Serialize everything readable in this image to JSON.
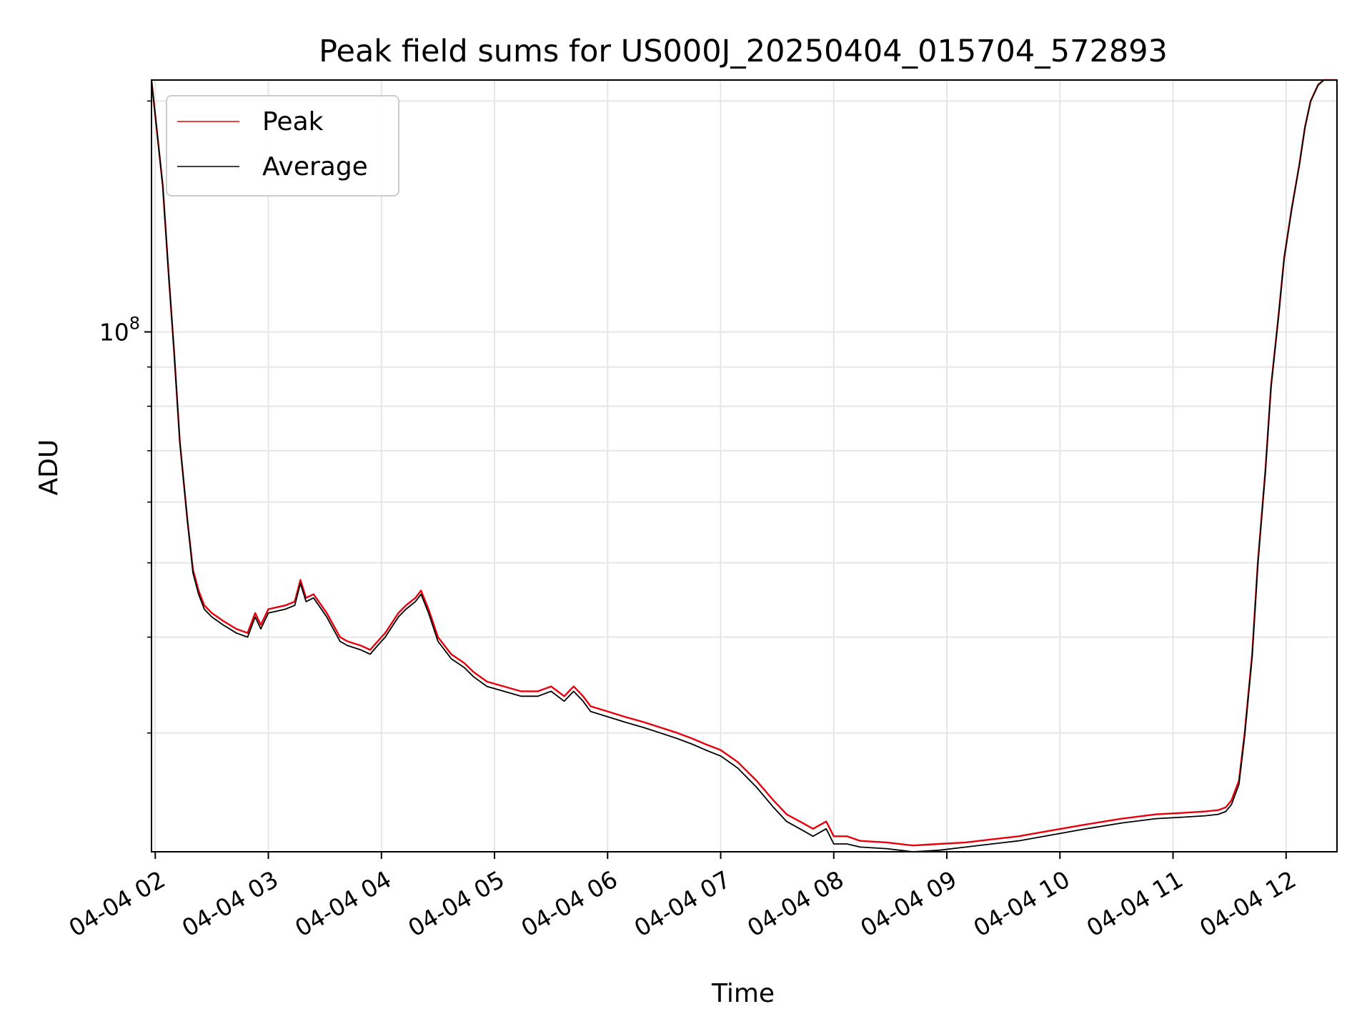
{
  "chart_data": {
    "type": "line",
    "title": "Peak field sums for US000J_20250404_015704_572893",
    "xlabel": "Time",
    "ylabel": "ADU",
    "x_scale": "time",
    "y_scale": "log",
    "xlim": [
      "2025-04-04 01:58",
      "2025-04-04 12:27"
    ],
    "ylim": [
      21000000,
      213000000
    ],
    "x_ticks": [
      {
        "value": "2025-04-04 02:00",
        "label": "04-04 02"
      },
      {
        "value": "2025-04-04 03:00",
        "label": "04-04 03"
      },
      {
        "value": "2025-04-04 04:00",
        "label": "04-04 04"
      },
      {
        "value": "2025-04-04 05:00",
        "label": "04-04 05"
      },
      {
        "value": "2025-04-04 06:00",
        "label": "04-04 06"
      },
      {
        "value": "2025-04-04 07:00",
        "label": "04-04 07"
      },
      {
        "value": "2025-04-04 08:00",
        "label": "04-04 08"
      },
      {
        "value": "2025-04-04 09:00",
        "label": "04-04 09"
      },
      {
        "value": "2025-04-04 10:00",
        "label": "04-04 10"
      },
      {
        "value": "2025-04-04 11:00",
        "label": "04-04 11"
      },
      {
        "value": "2025-04-04 12:00",
        "label": "04-04 12"
      }
    ],
    "y_major_tick": {
      "value": 100000000,
      "base": "10",
      "exponent": "8"
    },
    "y_minor_ticks": [
      30000000,
      40000000,
      50000000,
      60000000,
      70000000,
      80000000,
      90000000,
      200000000
    ],
    "grid": true,
    "legend_position": "upper-left",
    "x": [
      "2025-04-04 01:58",
      "2025-04-04 02:04",
      "2025-04-04 02:07",
      "2025-04-04 02:10",
      "2025-04-04 02:13",
      "2025-04-04 02:17",
      "2025-04-04 02:20",
      "2025-04-04 02:23",
      "2025-04-04 02:26",
      "2025-04-04 02:30",
      "2025-04-04 02:36",
      "2025-04-04 02:43",
      "2025-04-04 02:49",
      "2025-04-04 02:53",
      "2025-04-04 02:56",
      "2025-04-04 03:00",
      "2025-04-04 03:09",
      "2025-04-04 03:14",
      "2025-04-04 03:17",
      "2025-04-04 03:20",
      "2025-04-04 03:24",
      "2025-04-04 03:31",
      "2025-04-04 03:38",
      "2025-04-04 03:42",
      "2025-04-04 03:49",
      "2025-04-04 03:54",
      "2025-04-04 03:58",
      "2025-04-04 04:02",
      "2025-04-04 04:09",
      "2025-04-04 04:13",
      "2025-04-04 04:18",
      "2025-04-04 04:21",
      "2025-04-04 04:25",
      "2025-04-04 04:30",
      "2025-04-04 04:37",
      "2025-04-04 04:44",
      "2025-04-04 04:49",
      "2025-04-04 04:56",
      "2025-04-04 05:05",
      "2025-04-04 05:14",
      "2025-04-04 05:23",
      "2025-04-04 05:30",
      "2025-04-04 05:37",
      "2025-04-04 05:42",
      "2025-04-04 05:47",
      "2025-04-04 05:51",
      "2025-04-04 06:00",
      "2025-04-04 06:09",
      "2025-04-04 06:19",
      "2025-04-04 06:28",
      "2025-04-04 06:37",
      "2025-04-04 06:45",
      "2025-04-04 06:52",
      "2025-04-04 07:00",
      "2025-04-04 07:09",
      "2025-04-04 07:19",
      "2025-04-04 07:28",
      "2025-04-04 07:35",
      "2025-04-04 07:42",
      "2025-04-04 07:49",
      "2025-04-04 07:56",
      "2025-04-04 08:00",
      "2025-04-04 08:07",
      "2025-04-04 08:14",
      "2025-04-04 08:28",
      "2025-04-04 08:42",
      "2025-04-04 08:56",
      "2025-04-04 09:10",
      "2025-04-04 09:24",
      "2025-04-04 09:38",
      "2025-04-04 09:56",
      "2025-04-04 10:14",
      "2025-04-04 10:33",
      "2025-04-04 10:51",
      "2025-04-04 11:05",
      "2025-04-04 11:17",
      "2025-04-04 11:24",
      "2025-04-04 11:28",
      "2025-04-04 11:31",
      "2025-04-04 11:35",
      "2025-04-04 11:38",
      "2025-04-04 11:42",
      "2025-04-04 11:45",
      "2025-04-04 11:49",
      "2025-04-04 11:52",
      "2025-04-04 11:56",
      "2025-04-04 11:59",
      "2025-04-04 12:03",
      "2025-04-04 12:07",
      "2025-04-04 12:10",
      "2025-04-04 12:13",
      "2025-04-04 12:17",
      "2025-04-04 12:20",
      "2025-04-04 12:24",
      "2025-04-04 12:27"
    ],
    "series": [
      {
        "name": "Peak",
        "color": "#e8000b",
        "values": [
          213000000,
          155000000,
          120000000,
          94000000,
          72000000,
          57000000,
          49000000,
          46000000,
          44000000,
          43000000,
          42000000,
          41000000,
          40500000,
          43000000,
          41500000,
          43500000,
          44000000,
          44500000,
          47500000,
          45000000,
          45500000,
          43000000,
          40000000,
          39500000,
          39000000,
          38500000,
          39500000,
          40500000,
          43000000,
          44000000,
          45000000,
          46000000,
          43500000,
          40000000,
          38000000,
          37000000,
          36000000,
          35000000,
          34500000,
          34000000,
          34000000,
          34500000,
          33500000,
          34500000,
          33500000,
          32500000,
          32000000,
          31500000,
          31000000,
          30500000,
          30000000,
          29500000,
          29000000,
          28500000,
          27500000,
          26000000,
          24500000,
          23500000,
          23000000,
          22500000,
          23000000,
          22000000,
          22000000,
          21700000,
          21600000,
          21400000,
          21500000,
          21600000,
          21800000,
          22000000,
          22400000,
          22800000,
          23200000,
          23500000,
          23600000,
          23700000,
          23800000,
          24000000,
          24500000,
          26000000,
          30000000,
          38000000,
          50000000,
          66000000,
          85000000,
          105000000,
          125000000,
          145000000,
          165000000,
          185000000,
          200000000,
          210000000,
          213000000,
          213000000,
          213000000
        ]
      },
      {
        "name": "Average",
        "color": "#000000",
        "values": [
          213000000,
          155000000,
          120000000,
          94000000,
          72000000,
          57000000,
          48500000,
          45500000,
          43500000,
          42500000,
          41500000,
          40500000,
          40000000,
          42500000,
          41000000,
          43000000,
          43500000,
          44000000,
          47000000,
          44500000,
          45000000,
          42500000,
          39500000,
          39000000,
          38500000,
          38000000,
          39000000,
          40000000,
          42500000,
          43500000,
          44500000,
          45500000,
          43000000,
          39500000,
          37500000,
          36500000,
          35500000,
          34500000,
          34000000,
          33500000,
          33500000,
          34000000,
          33000000,
          34000000,
          33000000,
          32000000,
          31500000,
          31000000,
          30500000,
          30000000,
          29500000,
          29000000,
          28500000,
          28000000,
          27000000,
          25500000,
          24000000,
          23000000,
          22500000,
          22000000,
          22500000,
          21500000,
          21500000,
          21300000,
          21200000,
          21000000,
          21100000,
          21300000,
          21500000,
          21700000,
          22100000,
          22500000,
          22900000,
          23200000,
          23300000,
          23400000,
          23500000,
          23700000,
          24200000,
          25700000,
          29700000,
          37700000,
          49700000,
          65700000,
          84700000,
          104700000,
          124700000,
          144700000,
          164700000,
          184700000,
          199700000,
          209700000,
          213000000,
          213000000,
          213000000
        ]
      }
    ]
  }
}
